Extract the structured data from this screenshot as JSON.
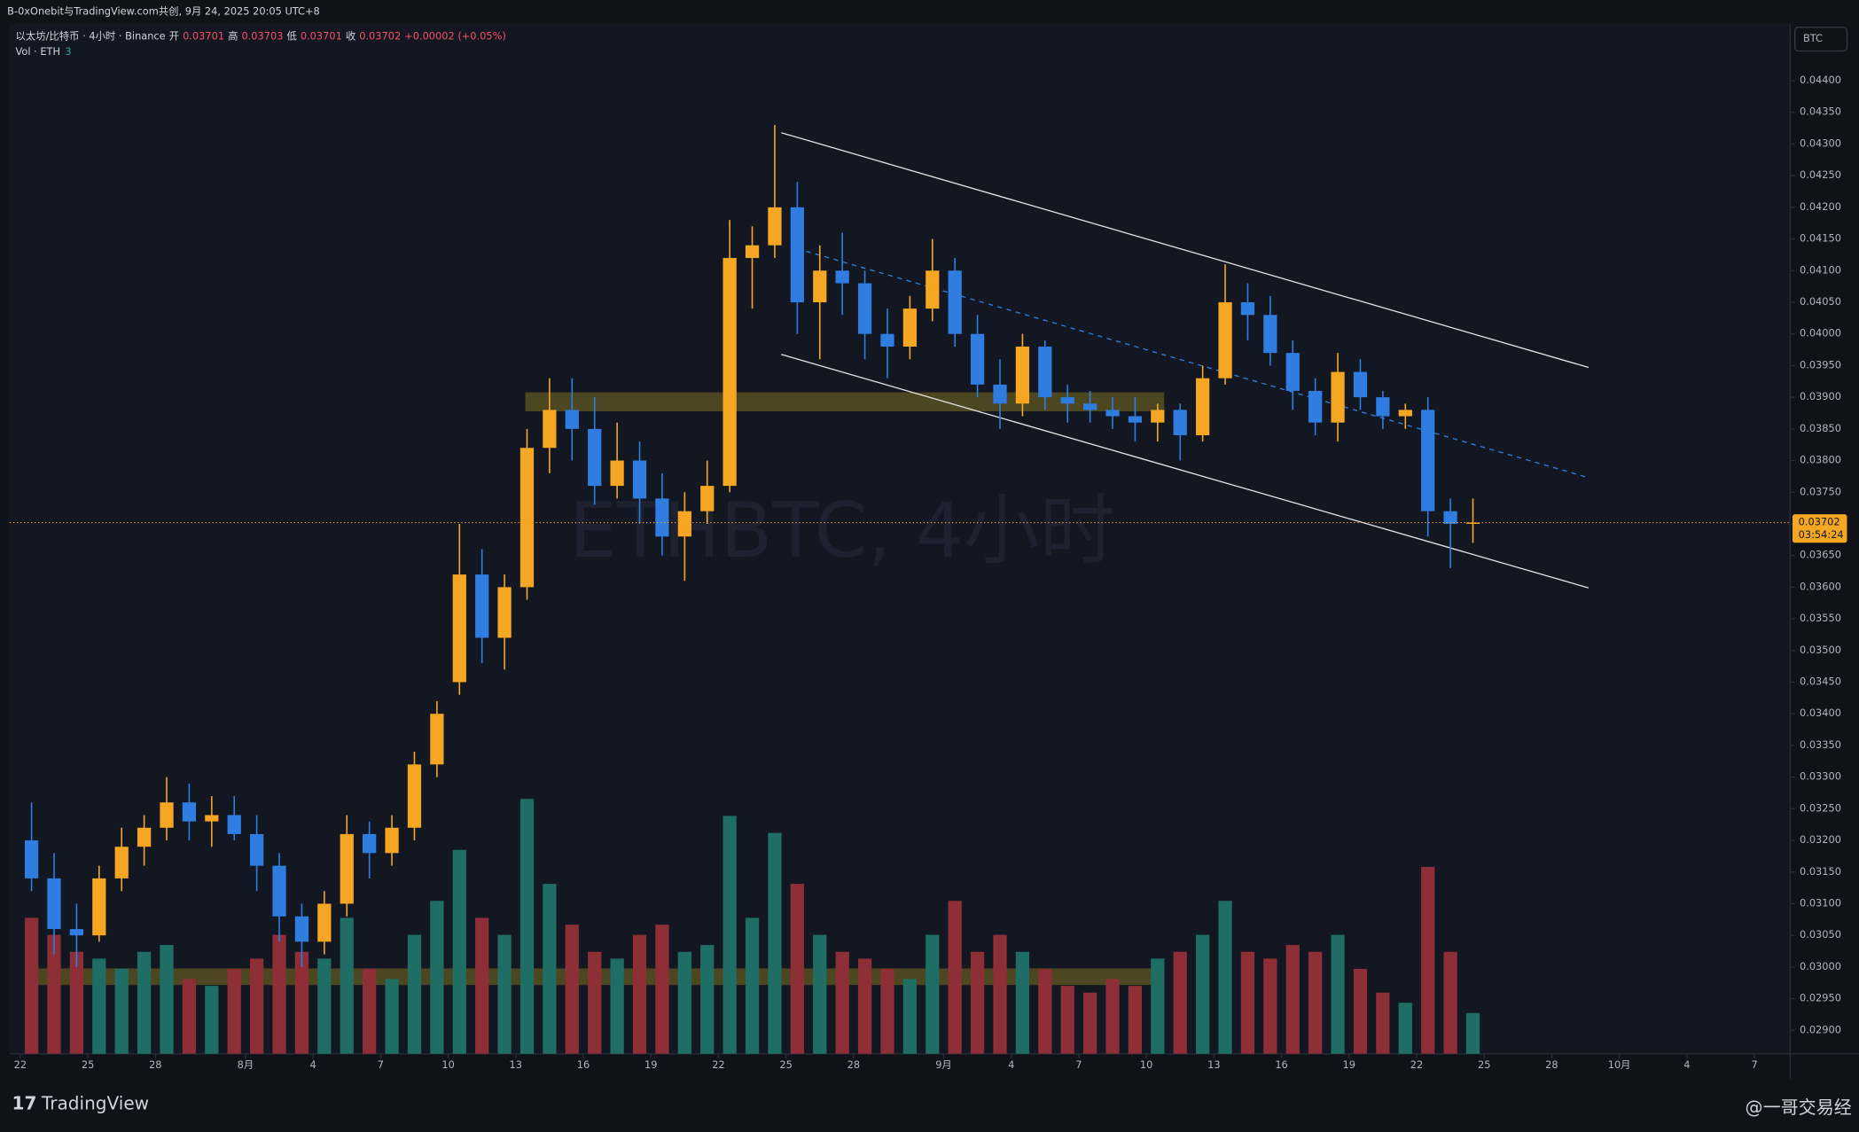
{
  "header": {
    "share_text": "B-0xOnebit与TradingView.com共创, 9月 24, 2025 20:05 UTC+8",
    "currency": "BTC"
  },
  "legend": {
    "symbol": "以太坊/比特币 · 4小时 · Binance",
    "open_label": "开",
    "open": 0.03701,
    "high_label": "高",
    "high": 0.03703,
    "low_label": "低",
    "low": 0.03701,
    "close_label": "收",
    "close": 0.03702,
    "change": "+0.00002 (+0.05%)",
    "volume_label": "Vol · ETH",
    "volume": 3
  },
  "footer": {
    "brand": "TradingView",
    "watermark": "@一哥交易经"
  },
  "chart_data": {
    "type": "candlestick",
    "title": "ETHBTC, 4小时",
    "up_color": "#f5a623",
    "down_color": "#2f7de1",
    "volume_up_color": "#1f6e66",
    "volume_down_color": "#8e2f37",
    "xlim": [
      "2025-07-21T12:38Z",
      "2025-10-08T14:00Z"
    ],
    "ylim": [
      0.02863,
      0.0449
    ],
    "yticks": [
      {
        "value": 0.029,
        "label": "0.02900"
      },
      {
        "value": 0.0295,
        "label": "0.02950"
      },
      {
        "value": 0.03,
        "label": "0.03000"
      },
      {
        "value": 0.0305,
        "label": "0.03050"
      },
      {
        "value": 0.031,
        "label": "0.03100"
      },
      {
        "value": 0.0315,
        "label": "0.03150"
      },
      {
        "value": 0.032,
        "label": "0.03200"
      },
      {
        "value": 0.0325,
        "label": "0.03250"
      },
      {
        "value": 0.033,
        "label": "0.03300"
      },
      {
        "value": 0.0335,
        "label": "0.03350"
      },
      {
        "value": 0.034,
        "label": "0.03400"
      },
      {
        "value": 0.0345,
        "label": "0.03450"
      },
      {
        "value": 0.035,
        "label": "0.03500"
      },
      {
        "value": 0.0355,
        "label": "0.03550"
      },
      {
        "value": 0.036,
        "label": "0.03600"
      },
      {
        "value": 0.0365,
        "label": "0.03650"
      },
      {
        "value": 0.037,
        "label": "0.03700"
      },
      {
        "value": 0.0375,
        "label": "0.03750"
      },
      {
        "value": 0.038,
        "label": "0.03800"
      },
      {
        "value": 0.0385,
        "label": "0.03850"
      },
      {
        "value": 0.039,
        "label": "0.03900"
      },
      {
        "value": 0.0395,
        "label": "0.03950"
      },
      {
        "value": 0.04,
        "label": "0.04000"
      },
      {
        "value": 0.0405,
        "label": "0.04050"
      },
      {
        "value": 0.041,
        "label": "0.04100"
      },
      {
        "value": 0.0415,
        "label": "0.04150"
      },
      {
        "value": 0.042,
        "label": "0.04200"
      },
      {
        "value": 0.0425,
        "label": "0.04250"
      },
      {
        "value": 0.043,
        "label": "0.04300"
      },
      {
        "value": 0.0435,
        "label": "0.04350"
      },
      {
        "value": 0.044,
        "label": "0.04400"
      }
    ],
    "xticks": [
      {
        "value": "2025-07-22",
        "label": "22"
      },
      {
        "value": "2025-07-25",
        "label": "25"
      },
      {
        "value": "2025-07-28",
        "label": "28"
      },
      {
        "value": "2025-08-01",
        "label": "8月"
      },
      {
        "value": "2025-08-04",
        "label": "4"
      },
      {
        "value": "2025-08-07",
        "label": "7"
      },
      {
        "value": "2025-08-10",
        "label": "10"
      },
      {
        "value": "2025-08-13",
        "label": "13"
      },
      {
        "value": "2025-08-16",
        "label": "16"
      },
      {
        "value": "2025-08-19",
        "label": "19"
      },
      {
        "value": "2025-08-22",
        "label": "22"
      },
      {
        "value": "2025-08-25",
        "label": "25"
      },
      {
        "value": "2025-08-28",
        "label": "28"
      },
      {
        "value": "2025-09-01",
        "label": "9月"
      },
      {
        "value": "2025-09-04",
        "label": "4"
      },
      {
        "value": "2025-09-07",
        "label": "7"
      },
      {
        "value": "2025-09-10",
        "label": "10"
      },
      {
        "value": "2025-09-13",
        "label": "13"
      },
      {
        "value": "2025-09-16",
        "label": "16"
      },
      {
        "value": "2025-09-19",
        "label": "19"
      },
      {
        "value": "2025-09-22",
        "label": "22"
      },
      {
        "value": "2025-09-25",
        "label": "25"
      },
      {
        "value": "2025-09-28",
        "label": "28"
      },
      {
        "value": "2025-10-01",
        "label": "10月"
      },
      {
        "value": "2025-10-04",
        "label": "4"
      },
      {
        "value": "2025-10-07",
        "label": "7"
      }
    ],
    "last_price": {
      "value": 0.03702,
      "label": "0.03702"
    },
    "countdown": "03:54:24",
    "x": [
      "2025-07-22",
      "2025-07-23",
      "2025-07-24",
      "2025-07-25",
      "2025-07-26",
      "2025-07-27",
      "2025-07-28",
      "2025-07-29",
      "2025-07-30",
      "2025-07-31",
      "2025-08-01",
      "2025-08-02",
      "2025-08-03",
      "2025-08-04",
      "2025-08-05",
      "2025-08-06",
      "2025-08-07",
      "2025-08-08",
      "2025-08-09",
      "2025-08-10",
      "2025-08-11",
      "2025-08-12",
      "2025-08-13",
      "2025-08-14",
      "2025-08-15",
      "2025-08-16",
      "2025-08-17",
      "2025-08-18",
      "2025-08-19",
      "2025-08-20",
      "2025-08-21",
      "2025-08-22",
      "2025-08-23",
      "2025-08-24",
      "2025-08-25",
      "2025-08-26",
      "2025-08-27",
      "2025-08-28",
      "2025-08-29",
      "2025-08-30",
      "2025-08-31",
      "2025-09-01",
      "2025-09-02",
      "2025-09-03",
      "2025-09-04",
      "2025-09-05",
      "2025-09-06",
      "2025-09-07",
      "2025-09-08",
      "2025-09-09",
      "2025-09-10",
      "2025-09-11",
      "2025-09-12",
      "2025-09-13",
      "2025-09-14",
      "2025-09-15",
      "2025-09-16",
      "2025-09-17",
      "2025-09-18",
      "2025-09-19",
      "2025-09-20",
      "2025-09-21",
      "2025-09-22",
      "2025-09-23",
      "2025-09-24"
    ],
    "open": [
      0.032,
      0.0314,
      0.0306,
      0.0305,
      0.0314,
      0.0319,
      0.0322,
      0.0326,
      0.0323,
      0.0324,
      0.0321,
      0.0316,
      0.0308,
      0.0304,
      0.031,
      0.0321,
      0.0318,
      0.0322,
      0.0332,
      0.0345,
      0.0362,
      0.0352,
      0.036,
      0.0382,
      0.0388,
      0.0385,
      0.0376,
      0.038,
      0.0374,
      0.0368,
      0.0372,
      0.0376,
      0.0412,
      0.0414,
      0.042,
      0.0405,
      0.041,
      0.0408,
      0.04,
      0.0398,
      0.0404,
      0.041,
      0.04,
      0.0392,
      0.0389,
      0.0398,
      0.039,
      0.0389,
      0.0388,
      0.0387,
      0.0386,
      0.0388,
      0.0384,
      0.0393,
      0.0405,
      0.0403,
      0.0397,
      0.0391,
      0.0386,
      0.0394,
      0.039,
      0.0387,
      0.0388,
      0.0372,
      0.037
    ],
    "high": [
      0.0326,
      0.0318,
      0.031,
      0.0316,
      0.0322,
      0.0324,
      0.033,
      0.0329,
      0.0327,
      0.0327,
      0.0324,
      0.0318,
      0.031,
      0.0312,
      0.0324,
      0.0323,
      0.0324,
      0.0334,
      0.0342,
      0.037,
      0.0366,
      0.0362,
      0.0385,
      0.0393,
      0.0393,
      0.039,
      0.0386,
      0.0383,
      0.0378,
      0.0375,
      0.038,
      0.0418,
      0.0417,
      0.0433,
      0.0424,
      0.0414,
      0.0416,
      0.041,
      0.0404,
      0.0406,
      0.0415,
      0.0412,
      0.0403,
      0.0396,
      0.04,
      0.0399,
      0.0392,
      0.0391,
      0.039,
      0.039,
      0.0389,
      0.0389,
      0.0395,
      0.0411,
      0.0408,
      0.0406,
      0.0399,
      0.0393,
      0.0397,
      0.0396,
      0.0391,
      0.0389,
      0.039,
      0.0374,
      0.0374
    ],
    "low": [
      0.0312,
      0.0302,
      0.03,
      0.0304,
      0.0312,
      0.0316,
      0.032,
      0.032,
      0.0319,
      0.032,
      0.0312,
      0.0304,
      0.03,
      0.0302,
      0.0308,
      0.0314,
      0.0316,
      0.032,
      0.033,
      0.0343,
      0.0348,
      0.0347,
      0.0358,
      0.0378,
      0.038,
      0.0373,
      0.0374,
      0.037,
      0.0365,
      0.0361,
      0.037,
      0.0375,
      0.0404,
      0.0412,
      0.04,
      0.0396,
      0.0403,
      0.0396,
      0.0393,
      0.0396,
      0.0402,
      0.0398,
      0.039,
      0.0385,
      0.0387,
      0.0388,
      0.0386,
      0.0386,
      0.0385,
      0.0383,
      0.0383,
      0.038,
      0.0383,
      0.0392,
      0.0399,
      0.0395,
      0.0388,
      0.0384,
      0.0383,
      0.0388,
      0.0385,
      0.0385,
      0.0368,
      0.0363,
      0.0367
    ],
    "close": [
      0.0314,
      0.0306,
      0.0305,
      0.0314,
      0.0319,
      0.0322,
      0.0326,
      0.0323,
      0.0324,
      0.0321,
      0.0316,
      0.0308,
      0.0304,
      0.031,
      0.0321,
      0.0318,
      0.0322,
      0.0332,
      0.034,
      0.0362,
      0.0352,
      0.036,
      0.0382,
      0.0388,
      0.0385,
      0.0376,
      0.038,
      0.0374,
      0.0368,
      0.0372,
      0.0376,
      0.0412,
      0.0414,
      0.042,
      0.0405,
      0.041,
      0.0408,
      0.04,
      0.0398,
      0.0404,
      0.041,
      0.04,
      0.0392,
      0.0389,
      0.0398,
      0.039,
      0.0389,
      0.0388,
      0.0387,
      0.0386,
      0.0388,
      0.0384,
      0.0393,
      0.0405,
      0.0403,
      0.0397,
      0.0391,
      0.0386,
      0.0394,
      0.039,
      0.0387,
      0.0388,
      0.0372,
      0.037,
      0.03702
    ],
    "volume": [
      40,
      35,
      30,
      28,
      25,
      30,
      32,
      22,
      20,
      25,
      28,
      35,
      30,
      28,
      40,
      25,
      22,
      35,
      45,
      60,
      40,
      35,
      75,
      50,
      38,
      30,
      28,
      35,
      38,
      30,
      32,
      70,
      40,
      65,
      50,
      35,
      30,
      28,
      25,
      22,
      35,
      45,
      30,
      35,
      30,
      25,
      20,
      18,
      22,
      20,
      28,
      30,
      35,
      45,
      30,
      28,
      32,
      30,
      35,
      25,
      18,
      15,
      55,
      30,
      12
    ]
  }
}
